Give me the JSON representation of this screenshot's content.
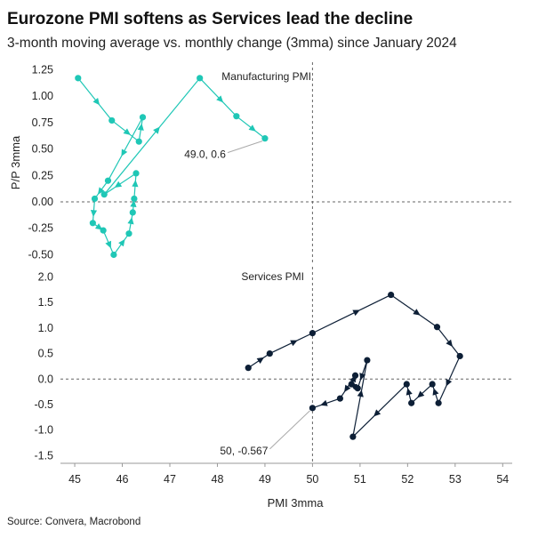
{
  "title": "Eurozone PMI softens as Services lead the decline",
  "subtitle": "3-month moving average vs. monthly change (3mma) since January 2024",
  "source": "Source: Convera, Macrobond",
  "colors": {
    "manufacturing": "#1fc7b6",
    "services": "#0d1f36",
    "zero_line": "#666666",
    "axis": "#999999"
  },
  "chart_data": [
    {
      "type": "line",
      "name": "Manufacturing PMI",
      "panel_label": "Manufacturing PMI",
      "ylabel": "P/P 3mma",
      "xlabel": "PMI 3mma",
      "xlim": [
        44.7,
        54.2
      ],
      "ylim": [
        -0.58,
        1.32
      ],
      "x_ticks": [
        "45",
        "46",
        "47",
        "48",
        "49",
        "50",
        "51",
        "52",
        "53",
        "54"
      ],
      "y_ticks": [
        "1.25",
        "1.00",
        "0.75",
        "0.50",
        "0.25",
        "0.00",
        "-0.25",
        "-0.50"
      ],
      "x_ref": 50,
      "points": [
        {
          "x": 45.07,
          "y": 1.17
        },
        {
          "x": 45.78,
          "y": 0.77
        },
        {
          "x": 46.35,
          "y": 0.57
        },
        {
          "x": 46.43,
          "y": 0.8
        },
        {
          "x": 45.7,
          "y": 0.2
        },
        {
          "x": 45.42,
          "y": 0.03
        },
        {
          "x": 45.38,
          "y": -0.2
        },
        {
          "x": 45.6,
          "y": -0.27
        },
        {
          "x": 45.82,
          "y": -0.5
        },
        {
          "x": 46.14,
          "y": -0.3
        },
        {
          "x": 46.22,
          "y": -0.1
        },
        {
          "x": 46.25,
          "y": 0.03
        },
        {
          "x": 46.29,
          "y": 0.27
        },
        {
          "x": 45.62,
          "y": 0.07
        },
        {
          "x": 47.63,
          "y": 1.17
        },
        {
          "x": 48.4,
          "y": 0.81
        },
        {
          "x": 49.0,
          "y": 0.6
        }
      ],
      "annotation": "49.0, 0.6"
    },
    {
      "type": "line",
      "name": "Services PMI",
      "panel_label": "Services PMI",
      "ylabel": "",
      "xlabel": "PMI 3mma",
      "xlim": [
        44.7,
        54.2
      ],
      "ylim": [
        -1.65,
        2.2
      ],
      "x_ticks": [
        "45",
        "46",
        "47",
        "48",
        "49",
        "50",
        "51",
        "52",
        "53",
        "54"
      ],
      "y_ticks": [
        "2.0",
        "1.5",
        "1.0",
        "0.5",
        "0.0",
        "-0.5",
        "-1.0",
        "-1.5"
      ],
      "x_ref": 50,
      "points": [
        {
          "x": 48.65,
          "y": 0.22
        },
        {
          "x": 49.1,
          "y": 0.5
        },
        {
          "x": 50.0,
          "y": 0.9
        },
        {
          "x": 51.65,
          "y": 1.65
        },
        {
          "x": 52.62,
          "y": 1.02
        },
        {
          "x": 53.1,
          "y": 0.45
        },
        {
          "x": 52.65,
          "y": -0.47
        },
        {
          "x": 52.52,
          "y": -0.1
        },
        {
          "x": 52.08,
          "y": -0.47
        },
        {
          "x": 51.98,
          "y": -0.1
        },
        {
          "x": 50.85,
          "y": -1.13
        },
        {
          "x": 51.15,
          "y": 0.37
        },
        {
          "x": 50.95,
          "y": -0.18
        },
        {
          "x": 50.82,
          "y": -0.1
        },
        {
          "x": 50.9,
          "y": 0.07
        },
        {
          "x": 50.58,
          "y": -0.38
        },
        {
          "x": 50.0,
          "y": -0.567
        }
      ],
      "annotation": "50, -0.567"
    }
  ]
}
